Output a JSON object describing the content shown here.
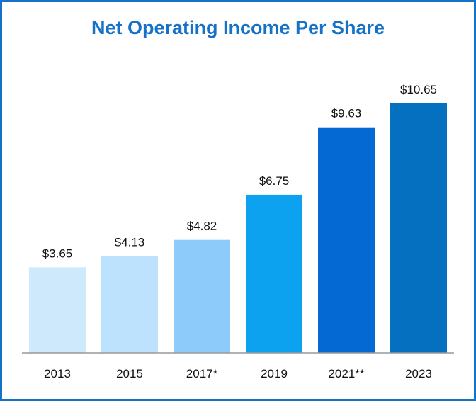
{
  "chart_data": {
    "type": "bar",
    "title": "Net Operating Income Per Share",
    "categories": [
      "2013",
      "2015",
      "2017*",
      "2019",
      "2021**",
      "2023"
    ],
    "values": [
      3.65,
      4.13,
      4.82,
      6.75,
      9.63,
      10.65
    ],
    "value_labels": [
      "$3.65",
      "$4.13",
      "$4.82",
      "$6.75",
      "$9.63",
      "$10.65"
    ],
    "bar_colors": [
      "#cde9fb",
      "#bde2fd",
      "#8ccbfa",
      "#0da2ef",
      "#0569d3",
      "#0670c0"
    ],
    "xlabel": "",
    "ylabel": "",
    "ylim": [
      0,
      10.65
    ],
    "grid": false,
    "legend": "none"
  },
  "colors": {
    "frame": "#1572c6",
    "title": "#1572c6",
    "axis": "#999999"
  }
}
